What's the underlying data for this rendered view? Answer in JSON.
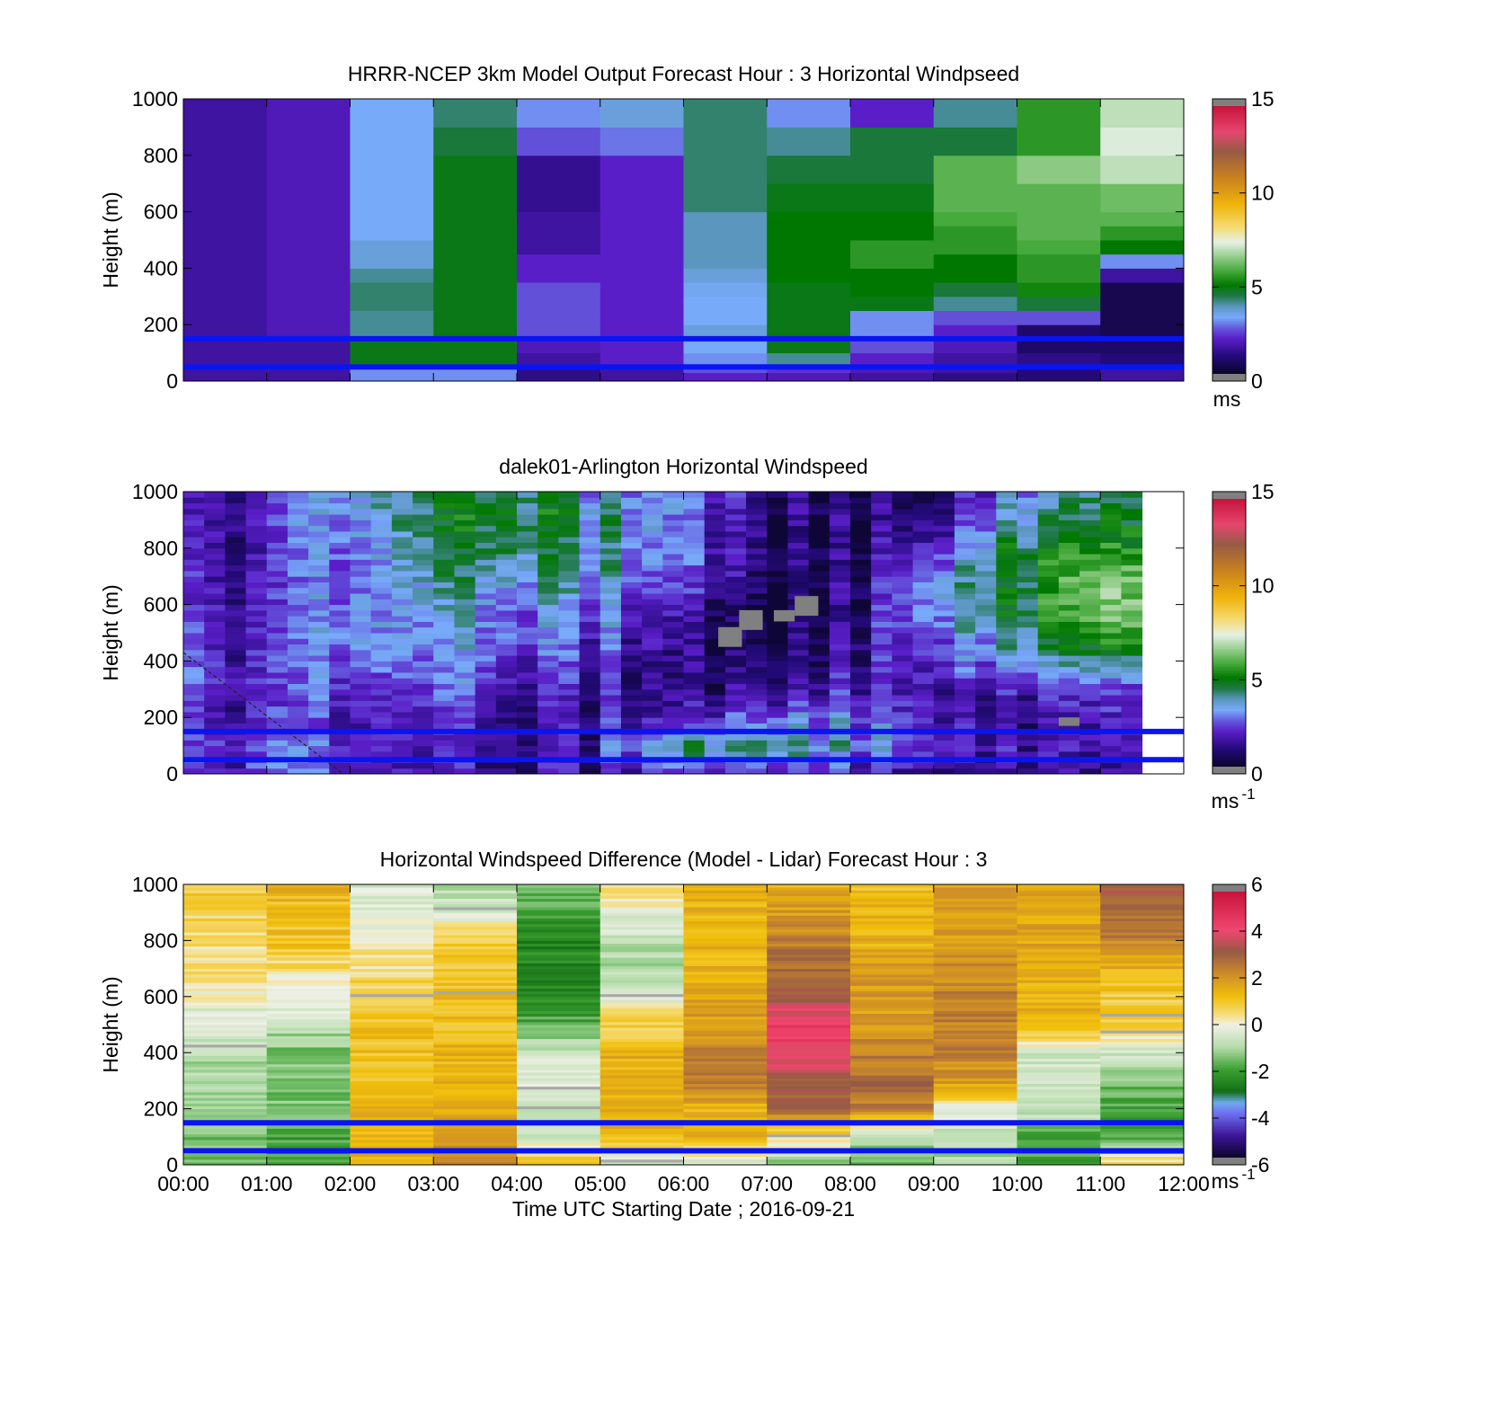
{
  "xlabel": "Time UTC  Starting Date ; 2016-09-21",
  "x_ticks": [
    "00:00",
    "01:00",
    "02:00",
    "03:00",
    "04:00",
    "05:00",
    "06:00",
    "07:00",
    "08:00",
    "09:00",
    "10:00",
    "11:00",
    "12:00"
  ],
  "chart_data": [
    {
      "type": "heatmap",
      "title": "HRRR-NCEP 3km Model Output   Forecast Hour : 3 Horizontal Windpseed",
      "ylabel": "Height (m)",
      "xlim": [
        "00:00",
        "12:00"
      ],
      "ylim": [
        0,
        1000
      ],
      "yticks": [
        0,
        200,
        400,
        600,
        800,
        1000
      ],
      "x_columns": [
        "00:00",
        "01:00",
        "02:00",
        "03:00",
        "04:00",
        "05:00",
        "06:00",
        "07:00",
        "08:00",
        "09:00",
        "10:00",
        "11:00"
      ],
      "y_levels_m": [
        0,
        30,
        60,
        100,
        150,
        200,
        250,
        300,
        350,
        400,
        450,
        500,
        550,
        600,
        700,
        800,
        900
      ],
      "z_units": "ms",
      "colorbar_ticks": [
        0,
        5,
        10,
        15
      ],
      "clim": [
        0,
        15
      ],
      "reference_lines_m": [
        150,
        50
      ],
      "reference_line_color": "#0a14f0",
      "values": [
        [
          1.5,
          1.5,
          1.5,
          1.5,
          1.5,
          1.5,
          1.5,
          1.5,
          1.5,
          1.5,
          1.5,
          1.5,
          1.5,
          1.5,
          1.5,
          1.5,
          1.5
        ],
        [
          1.5,
          1.5,
          1.5,
          1.5,
          1.8,
          1.8,
          1.8,
          1.8,
          1.8,
          1.8,
          1.8,
          1.8,
          1.8,
          1.8,
          1.8,
          1.8,
          1.8
        ],
        [
          3.0,
          3.0,
          4.8,
          4.8,
          4.0,
          4.0,
          4.2,
          4.2,
          4.0,
          3.5,
          3.5,
          3.2,
          3.2,
          3.2,
          3.2,
          3.2,
          3.2
        ],
        [
          3.0,
          3.0,
          4.8,
          4.8,
          4.8,
          4.8,
          4.8,
          4.8,
          4.8,
          4.8,
          4.8,
          4.8,
          4.8,
          4.8,
          4.8,
          4.5,
          4.2
        ],
        [
          1.2,
          1.2,
          1.5,
          1.8,
          2.5,
          2.5,
          2.5,
          2.5,
          2.0,
          2.0,
          1.5,
          1.5,
          1.5,
          1.3,
          1.3,
          2.5,
          3.0
        ],
        [
          1.5,
          1.5,
          2.0,
          2.0,
          2.0,
          2.0,
          2.0,
          2.0,
          2.0,
          2.0,
          2.0,
          2.0,
          2.0,
          2.0,
          2.0,
          2.8,
          3.5
        ],
        [
          2.0,
          2.5,
          3.0,
          3.2,
          3.5,
          3.2,
          3.2,
          3.3,
          3.5,
          3.8,
          3.8,
          3.8,
          3.8,
          4.2,
          4.2,
          4.2,
          4.2
        ],
        [
          1.8,
          2.2,
          4.0,
          4.8,
          4.8,
          4.8,
          4.8,
          4.8,
          5.0,
          5.0,
          5.0,
          5.0,
          5.0,
          4.8,
          4.5,
          4.0,
          3.0
        ],
        [
          1.5,
          1.8,
          2.0,
          2.5,
          3.0,
          3.0,
          4.8,
          5.0,
          5.0,
          5.5,
          5.5,
          5.0,
          5.0,
          4.8,
          4.5,
          4.5,
          2.0
        ],
        [
          1.2,
          1.5,
          1.5,
          1.8,
          2.0,
          2.5,
          4.0,
          4.5,
          5.0,
          5.0,
          5.5,
          5.5,
          5.8,
          6.0,
          6.0,
          4.5,
          4.0
        ],
        [
          1.0,
          1.0,
          1.2,
          0.8,
          0.8,
          2.5,
          4.5,
          5.2,
          5.5,
          5.5,
          5.8,
          6.0,
          6.0,
          6.0,
          6.5,
          5.5,
          5.5
        ],
        [
          1.5,
          1.5,
          1.0,
          0.8,
          0.5,
          0.5,
          0.5,
          0.5,
          1.5,
          3.0,
          5.0,
          5.5,
          6.0,
          6.2,
          7.0,
          7.3,
          7.0
        ]
      ]
    },
    {
      "type": "heatmap",
      "title": "dalek01-Arlington  Horizontal Windspeed",
      "ylabel": "Height (m)",
      "xlim": [
        "00:00",
        "12:00"
      ],
      "ylim": [
        0,
        1000
      ],
      "yticks": [
        0,
        200,
        400,
        600,
        800,
        1000
      ],
      "time_step_min": 15,
      "z_units": "ms-1",
      "colorbar_ticks": [
        0,
        5,
        10,
        15
      ],
      "clim": [
        0,
        15
      ],
      "reference_lines_m": [
        150,
        50
      ],
      "reference_line_color": "#0a14f0",
      "profile_heights_m": [
        0,
        100,
        200,
        300,
        400,
        500,
        600,
        700,
        800,
        900,
        1000
      ],
      "profiles_by_hour": [
        [
          1.8,
          2.0,
          1.8,
          2.5,
          2.5,
          2.2,
          1.8,
          1.8,
          1.5,
          1.5,
          1.5
        ],
        [
          2.5,
          2.8,
          2.2,
          2.0,
          2.0,
          1.8,
          2.0,
          2.0,
          1.8,
          2.0,
          1.8
        ],
        [
          2.5,
          2.5,
          2.0,
          2.5,
          3.0,
          3.5,
          3.2,
          3.0,
          3.2,
          3.5,
          3.5
        ],
        [
          1.5,
          1.8,
          2.0,
          2.5,
          3.0,
          3.0,
          3.5,
          4.0,
          4.2,
          4.5,
          4.5
        ],
        [
          1.2,
          1.5,
          1.5,
          2.0,
          2.5,
          3.0,
          3.0,
          3.8,
          4.8,
          5.0,
          5.0
        ],
        [
          1.5,
          2.0,
          1.5,
          1.5,
          2.0,
          2.5,
          3.0,
          3.5,
          3.5,
          4.0,
          3.5
        ],
        [
          2.0,
          4.0,
          1.5,
          1.0,
          0.8,
          1.0,
          1.5,
          2.0,
          2.5,
          2.5,
          3.0
        ],
        [
          2.5,
          4.5,
          3.0,
          1.5,
          1.0,
          0.5,
          0.5,
          1.0,
          1.2,
          1.2,
          1.5
        ],
        [
          2.0,
          3.5,
          3.0,
          2.0,
          1.5,
          1.5,
          1.0,
          1.2,
          1.0,
          1.0,
          1.0
        ],
        [
          1.5,
          2.5,
          2.0,
          2.0,
          2.5,
          3.0,
          3.5,
          3.5,
          2.5,
          1.5,
          1.0
        ],
        [
          1.5,
          2.0,
          1.5,
          2.0,
          3.5,
          4.5,
          5.0,
          5.0,
          5.0,
          4.0,
          3.5
        ],
        [
          1.5,
          1.8,
          2.0,
          2.5,
          4.5,
          6.0,
          6.5,
          6.5,
          5.5,
          5.0,
          4.5
        ]
      ],
      "no_data_patches": [
        {
          "x_start": "06:25",
          "x_end": "06:42",
          "y_range_m": [
            450,
            520
          ]
        },
        {
          "x_start": "06:40",
          "x_end": "06:57",
          "y_range_m": [
            510,
            580
          ]
        },
        {
          "x_start": "07:05",
          "x_end": "07:20",
          "y_range_m": [
            540,
            580
          ]
        },
        {
          "x_start": "07:20",
          "x_end": "07:37",
          "y_range_m": [
            560,
            630
          ]
        },
        {
          "x_start": "10:30",
          "x_end": "10:45",
          "y_range_m": [
            170,
            200
          ]
        }
      ]
    },
    {
      "type": "heatmap",
      "title": "Horizontal Windspeed Difference (Model - Lidar) Forecast Hour : 3",
      "ylabel": "Height (m)",
      "xlim": [
        "00:00",
        "12:00"
      ],
      "ylim": [
        0,
        1000
      ],
      "yticks": [
        0,
        200,
        400,
        600,
        800,
        1000
      ],
      "z_units": "ms-1",
      "colorbar_ticks": [
        -6,
        -4,
        -2,
        0,
        2,
        4
      ],
      "colorbar_top_tick": 6,
      "clim": [
        -6,
        6
      ],
      "reference_lines_m": [
        150,
        50
      ],
      "reference_line_color": "#0a14f0",
      "profile_heights_m": [
        0,
        100,
        200,
        300,
        400,
        500,
        600,
        700,
        800,
        900,
        1000
      ],
      "profiles_by_hour": [
        [
          -1.5,
          -1.5,
          -1.0,
          -1.0,
          -1.0,
          -0.5,
          0.0,
          0.5,
          0.5,
          0.8,
          1.0
        ],
        [
          -2.0,
          -2.0,
          -1.5,
          -1.5,
          -1.5,
          -0.8,
          0.0,
          0.5,
          1.2,
          1.2,
          1.5
        ],
        [
          1.5,
          1.5,
          1.5,
          1.2,
          1.2,
          1.2,
          1.0,
          0.5,
          0.2,
          -0.2,
          -0.5
        ],
        [
          2.5,
          2.0,
          1.5,
          1.5,
          1.5,
          1.3,
          1.3,
          1.0,
          1.0,
          -0.5,
          -1.0
        ],
        [
          1.5,
          -0.5,
          -0.5,
          -0.2,
          -0.5,
          -1.8,
          -2.5,
          -2.5,
          -2.5,
          -2.0,
          -1.5
        ],
        [
          -1.0,
          1.5,
          1.5,
          1.5,
          1.5,
          0.8,
          -0.3,
          -1.0,
          -0.8,
          -0.2,
          0.5
        ],
        [
          -0.5,
          1.5,
          1.5,
          2.5,
          2.5,
          2.0,
          1.8,
          1.5,
          1.5,
          1.5,
          1.5
        ],
        [
          -1.5,
          0.5,
          3.0,
          3.5,
          4.5,
          4.5,
          3.5,
          3.0,
          2.5,
          2.0,
          1.5
        ],
        [
          -1.5,
          -1.0,
          2.5,
          3.0,
          2.5,
          2.0,
          2.0,
          2.0,
          1.5,
          1.5,
          1.2
        ],
        [
          -1.0,
          -1.0,
          0.0,
          2.0,
          2.5,
          2.5,
          2.5,
          2.2,
          2.0,
          2.0,
          2.0
        ],
        [
          -2.0,
          -2.0,
          -0.5,
          -0.5,
          -0.5,
          1.5,
          1.5,
          1.5,
          1.8,
          1.8,
          1.8
        ],
        [
          1.0,
          -2.0,
          -2.0,
          -1.5,
          -0.5,
          0.8,
          1.0,
          1.5,
          2.5,
          3.0,
          3.5
        ]
      ]
    }
  ]
}
